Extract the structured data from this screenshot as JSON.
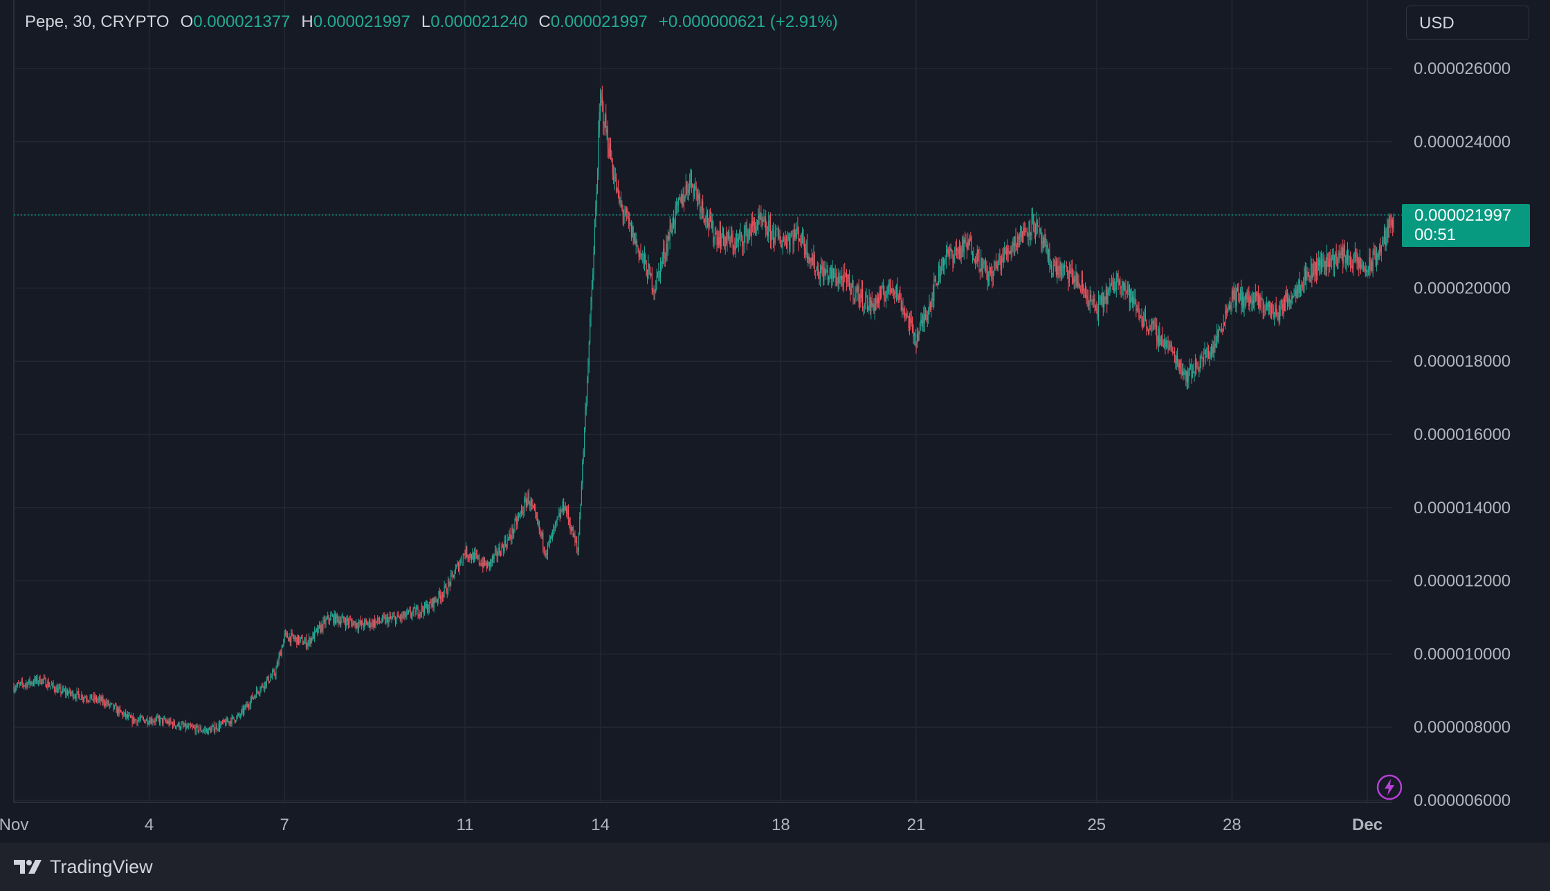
{
  "legend": {
    "symbol": "Pepe, 30, CRYPTO",
    "open_label": "O",
    "open": "0.000021377",
    "high_label": "H",
    "high": "0.000021997",
    "low_label": "L",
    "low": "0.000021240",
    "close_label": "C",
    "close": "0.000021997",
    "change": "+0.000000621 (+2.91%)"
  },
  "currency": "USD",
  "last_price": {
    "price": "0.000021997",
    "countdown": "00:51"
  },
  "brand": "TradingView",
  "colors": {
    "background": "#161a25",
    "up": "#22ab94",
    "down": "#f7525f",
    "grid": "#232734",
    "text": "#d1d4dc",
    "tag": "#089981"
  },
  "chart_data": {
    "type": "candlestick",
    "interval": "30",
    "grid": true,
    "y_axis": {
      "position": "right",
      "ylim": [
        6e-06,
        2.6e-05
      ],
      "ticks": [
        "0.000026000",
        "0.000024000",
        "0.000022000",
        "0.000020000",
        "0.000018000",
        "0.000016000",
        "0.000014000",
        "0.000012000",
        "0.000010000",
        "0.000008000",
        "0.000006000"
      ],
      "tick_values": [
        2.6e-05,
        2.4e-05,
        2.2e-05,
        2e-05,
        1.8e-05,
        1.6e-05,
        1.4e-05,
        1.2e-05,
        1e-05,
        8e-06,
        6e-06
      ]
    },
    "x_axis": {
      "ticks": [
        {
          "label": "Nov",
          "day": 1
        },
        {
          "label": "4",
          "day": 4
        },
        {
          "label": "7",
          "day": 7
        },
        {
          "label": "11",
          "day": 11
        },
        {
          "label": "14",
          "day": 14
        },
        {
          "label": "18",
          "day": 18
        },
        {
          "label": "21",
          "day": 21
        },
        {
          "label": "25",
          "day": 25
        },
        {
          "label": "28",
          "day": 28
        },
        {
          "label": "Dec",
          "day": 31
        }
      ],
      "range_days": [
        1,
        31.6
      ]
    },
    "price_path": [
      [
        1.0,
        9.1e-06
      ],
      [
        1.6,
        9.3e-06
      ],
      [
        2.0,
        9e-06
      ],
      [
        3.0,
        8.7e-06
      ],
      [
        3.6,
        8.2e-06
      ],
      [
        4.2,
        8.2e-06
      ],
      [
        4.8,
        8e-06
      ],
      [
        5.3,
        7.9e-06
      ],
      [
        6.0,
        8.3e-06
      ],
      [
        6.4,
        9e-06
      ],
      [
        6.8,
        9.5e-06
      ],
      [
        7.0,
        1.05e-05
      ],
      [
        7.5,
        1.03e-05
      ],
      [
        8.0,
        1.1e-05
      ],
      [
        8.7,
        1.08e-05
      ],
      [
        9.6,
        1.1e-05
      ],
      [
        10.2,
        1.13e-05
      ],
      [
        10.6,
        1.18e-05
      ],
      [
        11.0,
        1.28e-05
      ],
      [
        11.5,
        1.24e-05
      ],
      [
        12.0,
        1.32e-05
      ],
      [
        12.4,
        1.43e-05
      ],
      [
        12.8,
        1.28e-05
      ],
      [
        13.2,
        1.41e-05
      ],
      [
        13.5,
        1.28e-05
      ],
      [
        13.75,
        1.85e-05
      ],
      [
        13.85,
        2.08e-05
      ],
      [
        14.0,
        2.52e-05
      ],
      [
        14.4,
        2.24e-05
      ],
      [
        14.8,
        2.12e-05
      ],
      [
        15.2,
        2e-05
      ],
      [
        15.6,
        2.18e-05
      ],
      [
        16.0,
        2.3e-05
      ],
      [
        16.5,
        2.15e-05
      ],
      [
        17.0,
        2.12e-05
      ],
      [
        17.5,
        2.18e-05
      ],
      [
        18.0,
        2.13e-05
      ],
      [
        18.4,
        2.15e-05
      ],
      [
        18.8,
        2.05e-05
      ],
      [
        19.4,
        2.02e-05
      ],
      [
        20.0,
        1.95e-05
      ],
      [
        20.5,
        2.01e-05
      ],
      [
        21.0,
        1.86e-05
      ],
      [
        21.3,
        1.96e-05
      ],
      [
        21.6,
        2.08e-05
      ],
      [
        22.2,
        2.12e-05
      ],
      [
        22.6,
        2.03e-05
      ],
      [
        23.2,
        2.13e-05
      ],
      [
        23.6,
        2.18e-05
      ],
      [
        24.0,
        2.06e-05
      ],
      [
        24.5,
        2.03e-05
      ],
      [
        25.0,
        1.94e-05
      ],
      [
        25.5,
        2.03e-05
      ],
      [
        26.0,
        1.92e-05
      ],
      [
        26.6,
        1.84e-05
      ],
      [
        27.0,
        1.76e-05
      ],
      [
        27.6,
        1.84e-05
      ],
      [
        28.0,
        1.98e-05
      ],
      [
        28.6,
        1.96e-05
      ],
      [
        29.0,
        1.93e-05
      ],
      [
        29.6,
        2.03e-05
      ],
      [
        30.0,
        2.07e-05
      ],
      [
        30.5,
        2.09e-05
      ],
      [
        31.0,
        2.05e-05
      ],
      [
        31.3,
        2.11e-05
      ],
      [
        31.6,
        2.2e-05
      ]
    ],
    "last_value": 2.1997e-05
  }
}
